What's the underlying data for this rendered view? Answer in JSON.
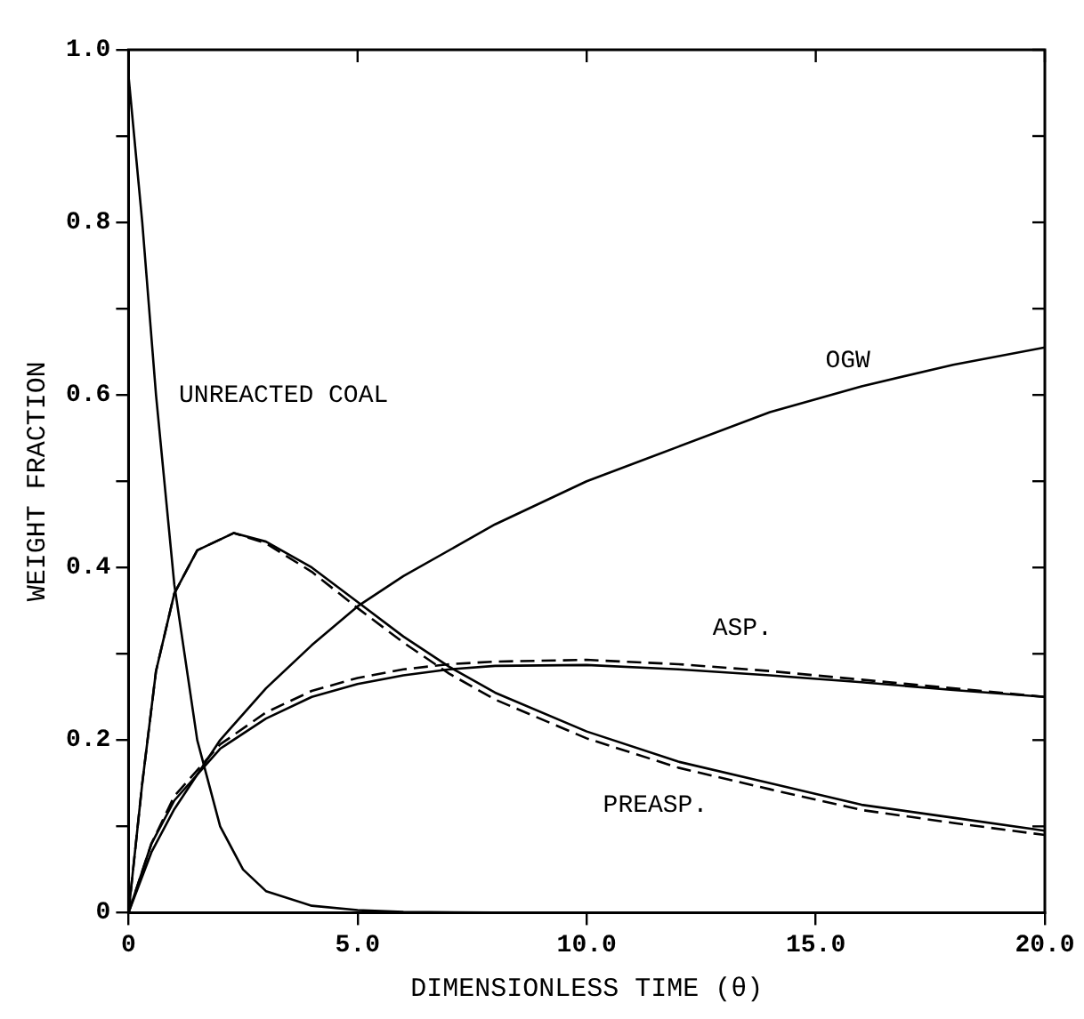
{
  "chart_data": {
    "type": "line",
    "xlabel": "DIMENSIONLESS TIME (θ)",
    "ylabel": "WEIGHT FRACTION",
    "xlim": [
      0,
      20
    ],
    "ylim": [
      0,
      1
    ],
    "xticks": [
      {
        "value": 0,
        "label": "0"
      },
      {
        "value": 5,
        "label": "5.0"
      },
      {
        "value": 10,
        "label": "10.0"
      },
      {
        "value": 15,
        "label": "15.0"
      },
      {
        "value": 20,
        "label": "20.0"
      }
    ],
    "yticks": [
      {
        "value": 0,
        "label": "0"
      },
      {
        "value": 0.1,
        "label": null
      },
      {
        "value": 0.2,
        "label": "0.2"
      },
      {
        "value": 0.3,
        "label": null
      },
      {
        "value": 0.4,
        "label": "0.4"
      },
      {
        "value": 0.5,
        "label": null
      },
      {
        "value": 0.6,
        "label": "0.6"
      },
      {
        "value": 0.7,
        "label": null
      },
      {
        "value": 0.8,
        "label": "0.8"
      },
      {
        "value": 0.9,
        "label": null
      },
      {
        "value": 1,
        "label": "1.0"
      }
    ],
    "grid": false,
    "legend": false,
    "marker": "none",
    "series": [
      {
        "name": "UNREACTED COAL",
        "color": "#000000",
        "line_style": "solid",
        "x": [
          0,
          0.3,
          0.6,
          1,
          1.5,
          2,
          2.5,
          3,
          4,
          5,
          6,
          8,
          20
        ],
        "values": [
          0.97,
          0.8,
          0.6,
          0.38,
          0.2,
          0.1,
          0.05,
          0.025,
          0.008,
          0.003,
          0.001,
          0,
          0
        ]
      },
      {
        "name": "PREASP.",
        "color": "#000000",
        "line_style": "solid",
        "x": [
          0,
          0.3,
          0.6,
          1,
          1.5,
          2.3,
          3,
          4,
          5,
          6,
          7,
          8,
          10,
          12,
          14,
          16,
          18,
          20
        ],
        "values": [
          0,
          0.15,
          0.28,
          0.37,
          0.42,
          0.44,
          0.43,
          0.4,
          0.36,
          0.32,
          0.285,
          0.255,
          0.21,
          0.175,
          0.15,
          0.125,
          0.11,
          0.095
        ]
      },
      {
        "color": "#000000",
        "line_style": "dashed",
        "x": [
          0,
          0.3,
          0.6,
          1,
          1.5,
          2.3,
          3,
          4,
          5,
          6,
          7,
          8,
          10,
          12,
          14,
          16,
          18,
          20
        ],
        "values": [
          0,
          0.15,
          0.28,
          0.37,
          0.42,
          0.44,
          0.428,
          0.395,
          0.353,
          0.313,
          0.277,
          0.247,
          0.202,
          0.168,
          0.143,
          0.119,
          0.104,
          0.09
        ]
      },
      {
        "name": "ASP.",
        "color": "#000000",
        "line_style": "solid",
        "x": [
          0,
          0.5,
          1,
          2,
          3,
          4,
          5,
          6,
          7,
          8,
          10,
          12,
          14,
          16,
          18,
          20
        ],
        "values": [
          0,
          0.08,
          0.13,
          0.19,
          0.225,
          0.25,
          0.265,
          0.275,
          0.282,
          0.286,
          0.287,
          0.282,
          0.275,
          0.267,
          0.258,
          0.25
        ]
      },
      {
        "color": "#000000",
        "line_style": "dashed",
        "x": [
          0,
          0.5,
          1,
          2,
          3,
          4,
          5,
          6,
          7,
          8,
          10,
          12,
          14,
          16,
          18,
          20
        ],
        "values": [
          0,
          0.08,
          0.135,
          0.195,
          0.232,
          0.257,
          0.272,
          0.282,
          0.288,
          0.291,
          0.293,
          0.288,
          0.28,
          0.27,
          0.26,
          0.25
        ]
      },
      {
        "name": "OGW",
        "color": "#000000",
        "line_style": "solid",
        "x": [
          0,
          0.5,
          1,
          2,
          3,
          4,
          5,
          6,
          8,
          10,
          12,
          14,
          16,
          18,
          20
        ],
        "values": [
          0,
          0.07,
          0.12,
          0.2,
          0.26,
          0.31,
          0.355,
          0.39,
          0.45,
          0.5,
          0.54,
          0.58,
          0.61,
          0.635,
          0.655
        ]
      }
    ]
  }
}
